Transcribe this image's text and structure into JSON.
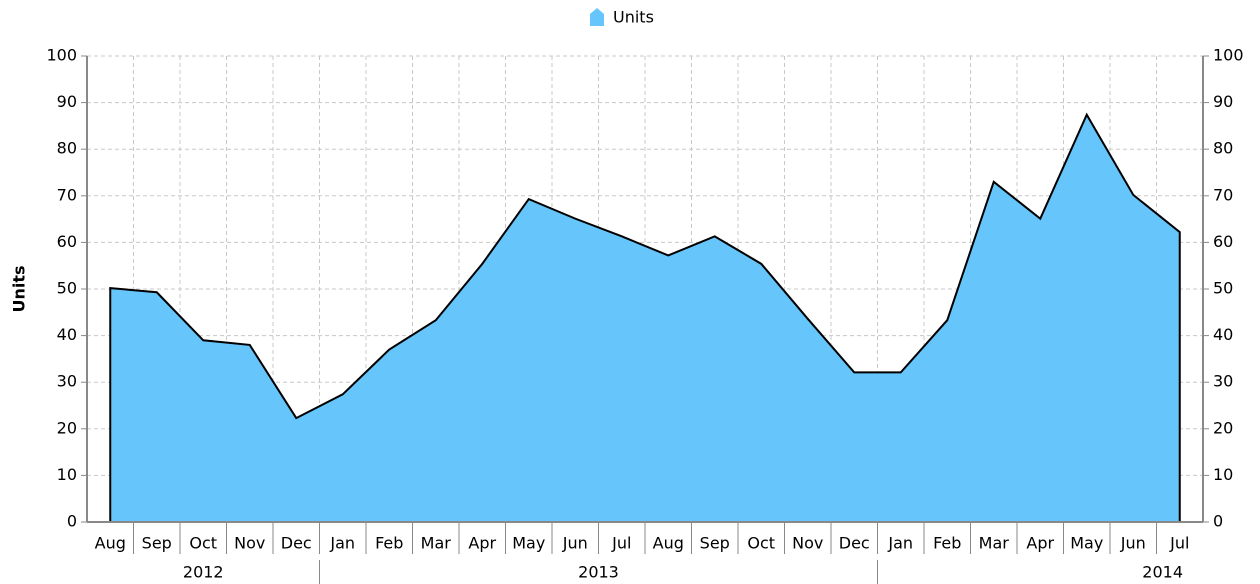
{
  "chart_data": {
    "type": "area",
    "y_label": "Units",
    "categories": [
      "Aug",
      "Sep",
      "Oct",
      "Nov",
      "Dec",
      "Jan",
      "Feb",
      "Mar",
      "Apr",
      "May",
      "Jun",
      "Jul",
      "Aug",
      "Sep",
      "Oct",
      "Nov",
      "Dec",
      "Jan",
      "Feb",
      "Mar",
      "Apr",
      "May",
      "Jun",
      "Jul"
    ],
    "category_groups": [
      {
        "label": "2012",
        "span": 5
      },
      {
        "label": "2013",
        "span": 12
      },
      {
        "label": "2014",
        "span": 7
      }
    ],
    "series": [
      {
        "name": "Units",
        "color": "#66c5fb",
        "values": [
          50.2,
          49.3,
          39,
          38,
          22.3,
          27.4,
          37,
          43.3,
          55.4,
          69.3,
          65.1,
          61.3,
          57.2,
          61.3,
          55.4,
          43.6,
          32.1,
          32.1,
          43.3,
          73,
          65.1,
          87.4,
          70.2,
          62.2
        ]
      }
    ],
    "ylim": [
      0,
      100
    ],
    "yticks": [
      0,
      10,
      20,
      30,
      40,
      50,
      60,
      70,
      80,
      90,
      100
    ],
    "y2lim": [
      0,
      100
    ],
    "y2ticks": [
      0,
      10,
      20,
      30,
      40,
      50,
      60,
      70,
      80,
      90,
      100
    ],
    "grid": true,
    "legend": "top"
  }
}
